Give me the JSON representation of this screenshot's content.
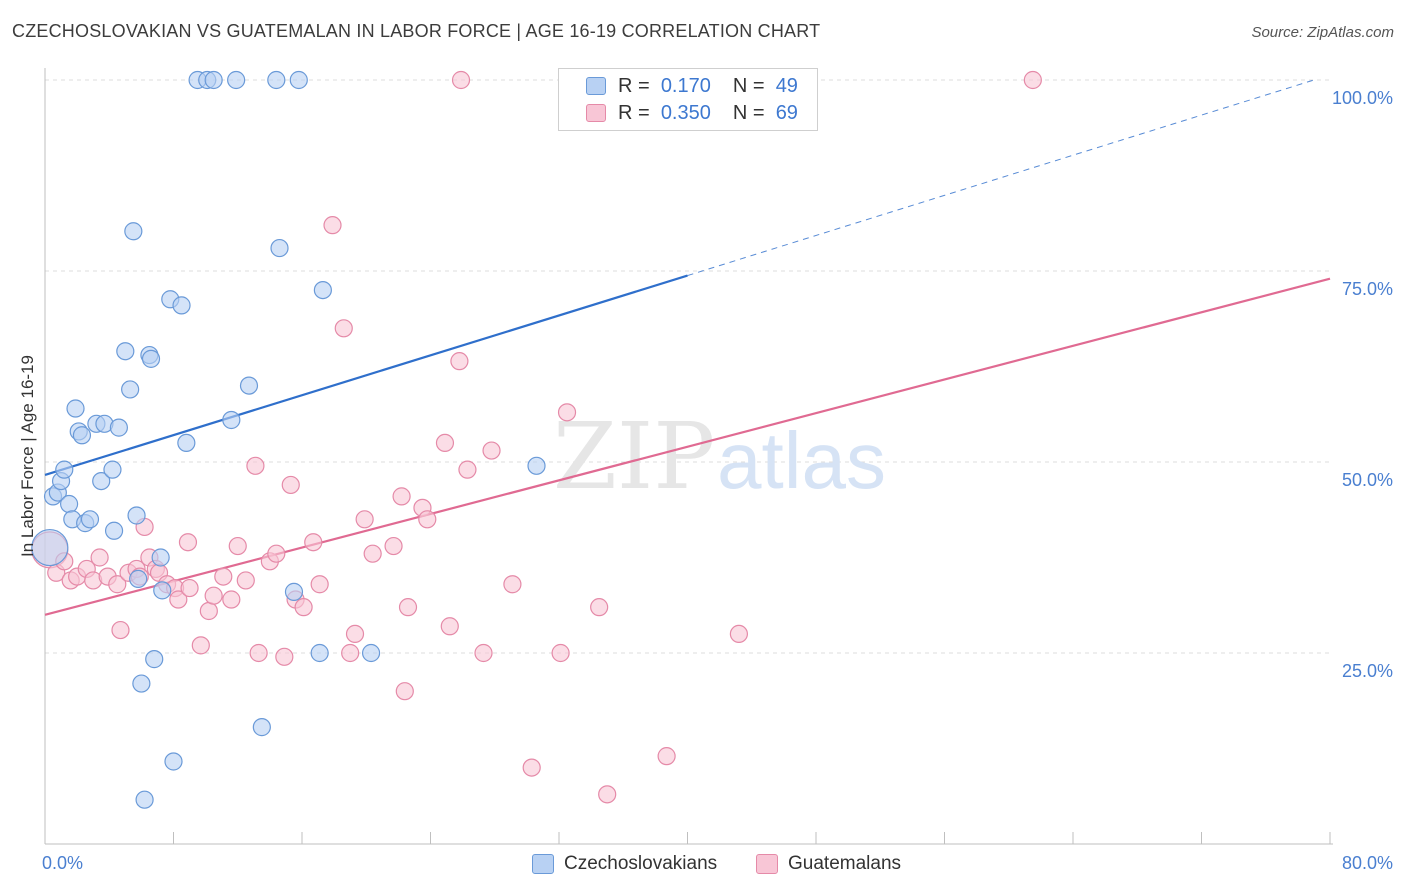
{
  "title": "CZECHOSLOVAKIAN VS GUATEMALAN IN LABOR FORCE | AGE 16-19 CORRELATION CHART",
  "source": "Source: ZipAtlas.com",
  "watermark": {
    "zip": "ZIP",
    "atlas": "atlas"
  },
  "legend": {
    "r_label": "R =",
    "n_label": "N =",
    "rows": [
      {
        "r": "0.170",
        "n": "49"
      },
      {
        "r": "0.350",
        "n": "69"
      }
    ]
  },
  "colors": {
    "czech_fill": "#b8d1f3",
    "czech_stroke": "#6a9ad8",
    "czech_line": "#2f6fcb",
    "guat_fill": "#f8c6d6",
    "guat_stroke": "#e58aa8",
    "guat_line": "#e06a92",
    "tick_text": "#4a7fd0",
    "grid": "#dcdcdc"
  },
  "chart_data": {
    "type": "scatter",
    "xlabel": "",
    "ylabel": "In Labor Force | Age 16-19",
    "xlim": [
      0,
      80
    ],
    "ylim": [
      0,
      102
    ],
    "x_tick_labels": [
      "0.0%",
      "80.0%"
    ],
    "y_ticks": [
      25,
      50,
      75,
      100
    ],
    "y_tick_labels": [
      "25.0%",
      "50.0%",
      "75.0%",
      "100.0%"
    ],
    "grid": true,
    "legend_position": "bottom-center",
    "series": [
      {
        "name": "Czechoslovakians",
        "r": 0.17,
        "n": 49,
        "trend": {
          "x0": 0,
          "y0": 48.3,
          "x1": 40,
          "y1": 74.4,
          "dashed_to_x": 79,
          "dashed_to_y": 100
        },
        "points": [
          [
            0.3,
            38.8
          ],
          [
            0.5,
            45.5
          ],
          [
            0.8,
            46
          ],
          [
            1,
            47.5
          ],
          [
            1.2,
            49
          ],
          [
            1.5,
            44.5
          ],
          [
            1.7,
            42.5
          ],
          [
            1.9,
            57
          ],
          [
            2.1,
            54
          ],
          [
            2.3,
            53.5
          ],
          [
            2.5,
            42
          ],
          [
            2.8,
            42.5
          ],
          [
            3.2,
            55
          ],
          [
            3.5,
            47.5
          ],
          [
            3.7,
            55
          ],
          [
            4.2,
            49
          ],
          [
            4.3,
            41
          ],
          [
            4.6,
            54.5
          ],
          [
            5.0,
            64.5
          ],
          [
            5.3,
            59.5
          ],
          [
            5.5,
            80.2
          ],
          [
            5.7,
            43
          ],
          [
            5.8,
            34.7
          ],
          [
            6.0,
            21
          ],
          [
            6.2,
            5.8
          ],
          [
            6.5,
            64
          ],
          [
            6.6,
            63.5
          ],
          [
            6.8,
            24.2
          ],
          [
            7.2,
            37.5
          ],
          [
            7.3,
            33.2
          ],
          [
            7.8,
            71.3
          ],
          [
            8.0,
            10.8
          ],
          [
            8.5,
            70.5
          ],
          [
            8.8,
            52.5
          ],
          [
            9.5,
            100
          ],
          [
            10.1,
            100
          ],
          [
            10.5,
            100
          ],
          [
            11.9,
            100
          ],
          [
            11.6,
            55.5
          ],
          [
            12.7,
            60
          ],
          [
            13.5,
            15.3
          ],
          [
            14.4,
            100
          ],
          [
            14.6,
            78
          ],
          [
            15.5,
            33
          ],
          [
            15.8,
            100
          ],
          [
            17.1,
            25
          ],
          [
            17.3,
            72.5
          ],
          [
            20.3,
            25
          ],
          [
            30.6,
            49.5
          ]
        ]
      },
      {
        "name": "Guatemalans",
        "r": 0.35,
        "n": 69,
        "trend": {
          "x0": 0,
          "y0": 30,
          "x1": 80,
          "y1": 74
        },
        "points": [
          [
            0.3,
            38.5
          ],
          [
            0.7,
            35.5
          ],
          [
            1.2,
            37
          ],
          [
            1.6,
            34.5
          ],
          [
            2.0,
            35
          ],
          [
            2.6,
            36
          ],
          [
            3.0,
            34.5
          ],
          [
            3.4,
            37.5
          ],
          [
            3.9,
            35
          ],
          [
            4.5,
            34
          ],
          [
            4.7,
            28
          ],
          [
            5.2,
            35.5
          ],
          [
            5.7,
            36
          ],
          [
            5.9,
            35
          ],
          [
            6.2,
            41.5
          ],
          [
            6.5,
            37.5
          ],
          [
            6.9,
            36
          ],
          [
            7.1,
            35.5
          ],
          [
            7.6,
            34
          ],
          [
            8.1,
            33.5
          ],
          [
            8.3,
            32
          ],
          [
            8.9,
            39.5
          ],
          [
            9.0,
            33.5
          ],
          [
            9.7,
            26
          ],
          [
            10.2,
            30.5
          ],
          [
            10.5,
            32.5
          ],
          [
            11.1,
            35
          ],
          [
            11.6,
            32
          ],
          [
            12.0,
            39
          ],
          [
            12.5,
            34.5
          ],
          [
            13.1,
            49.5
          ],
          [
            13.3,
            25
          ],
          [
            14.0,
            37
          ],
          [
            14.4,
            38
          ],
          [
            14.9,
            24.5
          ],
          [
            15.3,
            47
          ],
          [
            15.6,
            32
          ],
          [
            16.1,
            31
          ],
          [
            16.7,
            39.5
          ],
          [
            17.1,
            34
          ],
          [
            17.9,
            81
          ],
          [
            18.6,
            67.5
          ],
          [
            19.0,
            25
          ],
          [
            19.3,
            27.5
          ],
          [
            19.9,
            42.5
          ],
          [
            20.4,
            38
          ],
          [
            21.7,
            39
          ],
          [
            22.2,
            45.5
          ],
          [
            22.4,
            20
          ],
          [
            22.6,
            31
          ],
          [
            23.5,
            44
          ],
          [
            23.8,
            42.5
          ],
          [
            24.9,
            52.5
          ],
          [
            25.2,
            28.5
          ],
          [
            25.8,
            63.2
          ],
          [
            25.9,
            100
          ],
          [
            26.3,
            49
          ],
          [
            27.3,
            25
          ],
          [
            27.8,
            51.5
          ],
          [
            29.1,
            34
          ],
          [
            30.3,
            10
          ],
          [
            32.1,
            25
          ],
          [
            32.5,
            56.5
          ],
          [
            34.5,
            31
          ],
          [
            35.0,
            6.5
          ],
          [
            38.2,
            100
          ],
          [
            38.7,
            11.5
          ],
          [
            43.2,
            27.5
          ],
          [
            61.5,
            100
          ]
        ]
      }
    ]
  }
}
